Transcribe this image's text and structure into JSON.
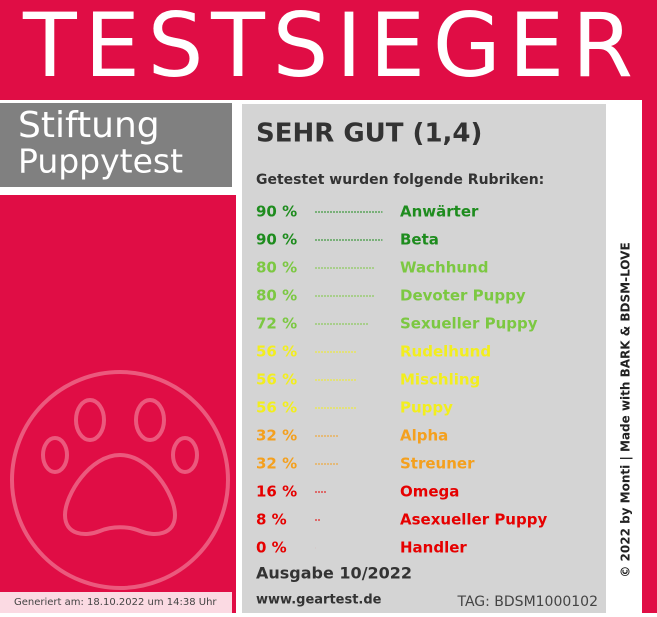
{
  "header": {
    "title": "TESTSIEGER"
  },
  "brand": {
    "line1": "Stiftung",
    "line2": "Puppytest"
  },
  "rating": "SEHR GUT (1,4)",
  "intro": "Getestet wurden folgende Rubriken:",
  "rows": [
    {
      "value": 90,
      "value_label": "90 %",
      "label": "Anwärter",
      "color": "#1e8c1e"
    },
    {
      "value": 90,
      "value_label": "90 %",
      "label": "Beta",
      "color": "#1e8c1e"
    },
    {
      "value": 80,
      "value_label": "80 %",
      "label": "Wachhund",
      "color": "#7cc842"
    },
    {
      "value": 80,
      "value_label": "80 %",
      "label": "Devoter Puppy",
      "color": "#7cc842"
    },
    {
      "value": 72,
      "value_label": "72 %",
      "label": "Sexueller Puppy",
      "color": "#7cc842"
    },
    {
      "value": 56,
      "value_label": "56 %",
      "label": "Rudelhund",
      "color": "#f2ee1e"
    },
    {
      "value": 56,
      "value_label": "56 %",
      "label": "Mischling",
      "color": "#f2ee1e"
    },
    {
      "value": 56,
      "value_label": "56 %",
      "label": "Puppy",
      "color": "#f2ee1e"
    },
    {
      "value": 32,
      "value_label": "32 %",
      "label": "Alpha",
      "color": "#f4a01e"
    },
    {
      "value": 32,
      "value_label": "32 %",
      "label": "Streuner",
      "color": "#f4a01e"
    },
    {
      "value": 16,
      "value_label": "16 %",
      "label": "Omega",
      "color": "#e60000"
    },
    {
      "value": 8,
      "value_label": "8 %",
      "label": "Asexueller Puppy",
      "color": "#e60000"
    },
    {
      "value": 0,
      "value_label": "0 %",
      "label": "Handler",
      "color": "#e60000"
    }
  ],
  "issue": "Ausgabe 10/2022",
  "website": "www.geartest.de",
  "tag": "TAG: BDSM1000102",
  "generated": "Generiert am: 18.10.2022 um 14:38 Uhr",
  "copyright": "© 2022 by Monti | Made with BARK & BDSM-LOVE"
}
